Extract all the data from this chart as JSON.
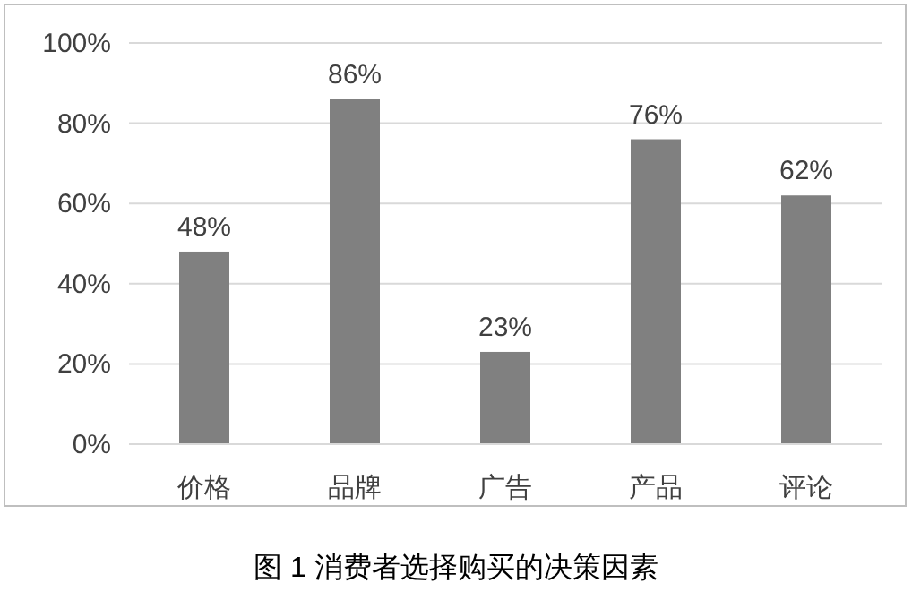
{
  "chart_data": {
    "type": "bar",
    "categories": [
      "价格",
      "品牌",
      "广告",
      "产品",
      "评论"
    ],
    "values": [
      48,
      86,
      23,
      76,
      62
    ],
    "color": "#808080",
    "value_labels": [
      "48%",
      "86%",
      "23%",
      "76%",
      "62%"
    ],
    "ylim": [
      0,
      100
    ],
    "yticks": [
      {
        "value": 0,
        "label": "0%"
      },
      {
        "value": 20,
        "label": "20%"
      },
      {
        "value": 40,
        "label": "40%"
      },
      {
        "value": 60,
        "label": "60%"
      },
      {
        "value": 80,
        "label": "80%"
      },
      {
        "value": 100,
        "label": "100%"
      }
    ],
    "grid": "y",
    "annotations": [
      "图 1  消费者选择购买的决策因素"
    ]
  }
}
